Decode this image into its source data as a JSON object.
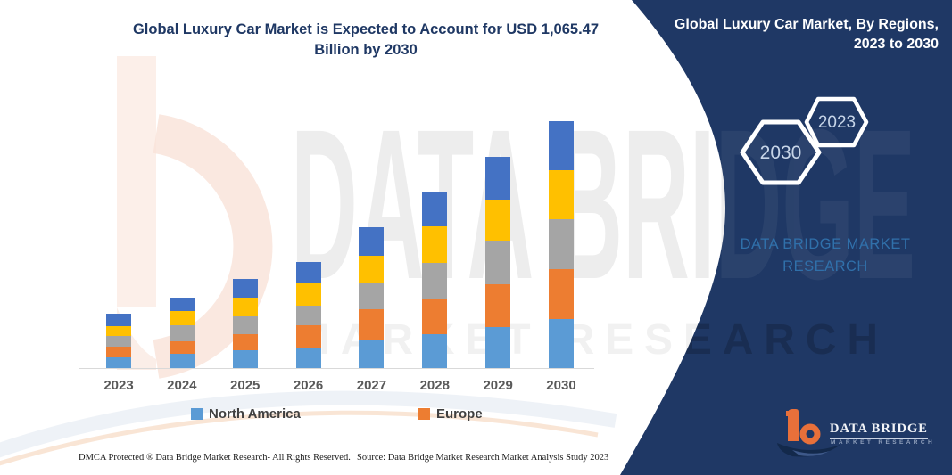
{
  "chart": {
    "title": "Global Luxury Car Market is Expected to Account for USD 1,065.47 Billion by 2030",
    "title_line1": "Global Luxury Car Market is Expected to Account for USD 1,065.47",
    "title_line2": "Billion by 2030"
  },
  "chart_data": {
    "type": "bar",
    "stacked": true,
    "title": "Global Luxury Car Market is Expected to Account for USD 1,065.47 Billion by 2030",
    "categories": [
      "2023",
      "2024",
      "2025",
      "2026",
      "2027",
      "2028",
      "2029",
      "2030"
    ],
    "series": [
      {
        "name": "North America",
        "color": "#5B9BD5",
        "values": [
          12,
          16,
          20,
          23,
          31,
          38,
          46,
          55
        ]
      },
      {
        "name": "Europe",
        "color": "#ED7D31",
        "values": [
          12,
          14,
          18,
          25,
          35,
          39,
          48,
          56
        ]
      },
      {
        "name": "",
        "color": "#A5A5A5",
        "values": [
          12,
          18,
          20,
          22,
          29,
          41,
          49,
          56
        ]
      },
      {
        "name": "",
        "color": "#FFC000",
        "values": [
          11,
          16,
          21,
          25,
          31,
          41,
          46,
          55
        ]
      },
      {
        "name": "",
        "color": "#4472C4",
        "values": [
          14,
          15,
          21,
          24,
          32,
          39,
          48,
          55
        ]
      }
    ],
    "totals_relative": [
      61,
      79,
      100,
      119,
      158,
      198,
      237,
      277
    ],
    "stated_2030_total": "USD 1,065.47 Billion",
    "xlabel": "",
    "ylabel": "",
    "units": "relative bar height (no value axis shown in figure)",
    "value_axis_visible": false,
    "grid": false,
    "legend": [
      "North America",
      "Europe"
    ],
    "legend_position": "bottom"
  },
  "panel": {
    "title": "Global Luxury Car Market, By Regions, 2023 to 2030",
    "title_line1": "Global Luxury Car Market, By Regions,",
    "title_line2": "2023 to 2030",
    "hexagons": [
      {
        "label": "2030"
      },
      {
        "label": "2023"
      }
    ],
    "watermark_line1": "DATA BRIDGE MARKET",
    "watermark_line2": "RESEARCH",
    "logo": {
      "name_line": "DATA BRIDGE",
      "sub_line": "MARKET RESEARCH"
    }
  },
  "watermarks": {
    "big_text": "DATA BRIDGE",
    "sub_text": "MARKET RESEARCH"
  },
  "footer": {
    "left": "DMCA Protected ® Data Bridge Market Research-  All Rights Reserved.",
    "right": "Source: Data Bridge Market Research  Market Analysis Study 2023"
  },
  "colors": {
    "panel_navy": "#1F3865",
    "title_navy": "#1F3864",
    "axis_line": "#D9D9D9",
    "x_label_gray": "#595959",
    "legend_text_gray": "#404040",
    "north_america": "#5B9BD5",
    "europe": "#ED7D31",
    "series_gray": "#A5A5A5",
    "series_yellow": "#FFC000",
    "series_blue": "#4472C4",
    "logo_orange": "#E8703A",
    "panel_watermark_blue": "#3173AE",
    "watermark_peach": "#FBEAE2",
    "watermark_gray": "#EDEDED"
  }
}
